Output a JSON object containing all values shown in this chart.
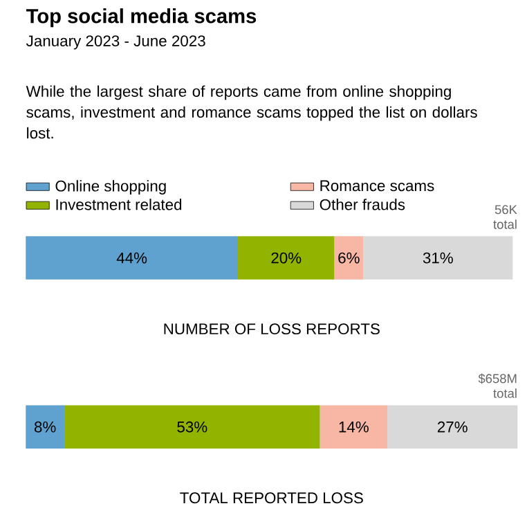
{
  "chart_data": {
    "type": "bar",
    "orientation": "horizontal",
    "stacked": true,
    "title": "Top social media scams",
    "subtitle": "January 2023 - June 2023",
    "annotations": [
      "While the largest share of reports came from online shopping scams, investment and romance scams topped the list on dollars lost.",
      "56K total",
      "$658M total"
    ],
    "categories": [
      "NUMBER OF LOSS REPORTS",
      "TOTAL REPORTED LOSS"
    ],
    "series": [
      {
        "name": "Online shopping",
        "color": "#5fa2d0",
        "values": [
          44,
          8
        ],
        "value_labels": [
          "44%",
          "8%"
        ]
      },
      {
        "name": "Investment related",
        "color": "#92b300",
        "values": [
          20,
          53
        ],
        "value_labels": [
          "20%",
          "53%"
        ]
      },
      {
        "name": "Romance scams",
        "color": "#f8b7a5",
        "values": [
          6,
          14
        ],
        "value_labels": [
          "6%",
          "14%"
        ]
      },
      {
        "name": "Other frauds",
        "color": "#d9d9d9",
        "values": [
          31,
          27
        ],
        "value_labels": [
          "31%",
          "27%"
        ]
      }
    ],
    "legend": "top left"
  }
}
